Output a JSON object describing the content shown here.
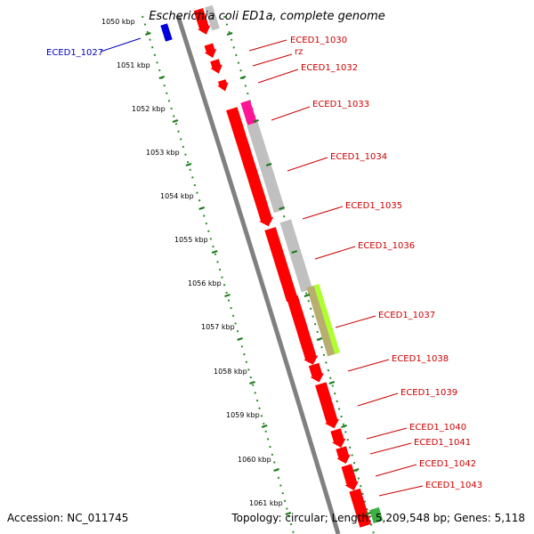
{
  "title": "Escherichia coli ED1a, complete genome",
  "footer": {
    "accession": "Accession: NC_011745",
    "topology": "Topology: circular; Length: 5,209,548 bp; Genes: 5,118"
  },
  "colors": {
    "gene": "#ff0000",
    "gene_grey": "#c0c0c0",
    "gene_blue": "#0000dd",
    "gene_magenta": "#ff1493",
    "gene_lime": "#adff2f",
    "gene_olive": "#b8ae70",
    "gene_green": "#3cb043",
    "backbone": "#808080",
    "tick": "#008000",
    "label_red": "#cc0000",
    "label_blue": "#0000bb"
  },
  "kbp_labels": [
    "1050 kbp",
    "1051 kbp",
    "1052 kbp",
    "1053 kbp",
    "1054 kbp",
    "1055 kbp",
    "1056 kbp",
    "1057 kbp",
    "1058 kbp",
    "1059 kbp",
    "1060 kbp",
    "1061 kbp"
  ],
  "gene_labels": [
    {
      "text": "ECED1_1027",
      "color": "blue"
    },
    {
      "text": "ECED1_1030",
      "color": "red"
    },
    {
      "text": "rz",
      "color": "red"
    },
    {
      "text": "ECED1_1032",
      "color": "red"
    },
    {
      "text": "ECED1_1033",
      "color": "red"
    },
    {
      "text": "ECED1_1034",
      "color": "red"
    },
    {
      "text": "ECED1_1035",
      "color": "red"
    },
    {
      "text": "ECED1_1036",
      "color": "red"
    },
    {
      "text": "ECED1_1037",
      "color": "red"
    },
    {
      "text": "ECED1_1038",
      "color": "red"
    },
    {
      "text": "ECED1_1039",
      "color": "red"
    },
    {
      "text": "ECED1_1040",
      "color": "red"
    },
    {
      "text": "ECED1_1041",
      "color": "red"
    },
    {
      "text": "ECED1_1042",
      "color": "red"
    },
    {
      "text": "ECED1_1043",
      "color": "red"
    }
  ]
}
